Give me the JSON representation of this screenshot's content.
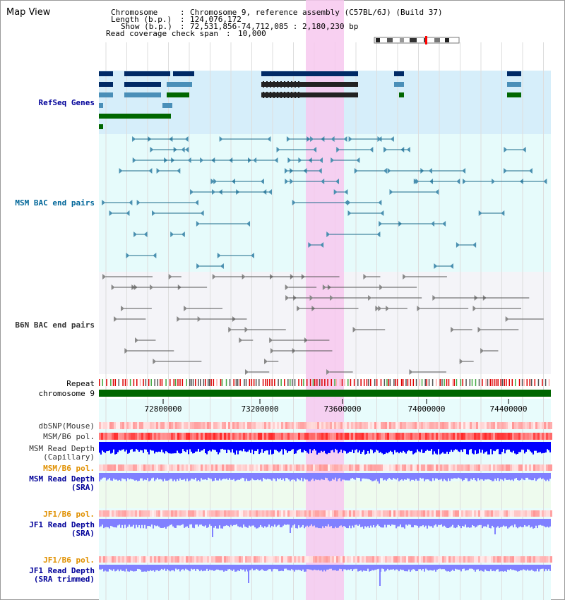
{
  "panel_title": "Map View",
  "header": {
    "chromosome_key": "Chromosome",
    "chromosome_value": "Chromosome 9, reference assembly (C57BL/6J) (Build 37)",
    "length_key": "Length (b.p.)",
    "length_value": "124,076,172",
    "show_key": "Show (b.p.)",
    "show_value": "72,531,856-74,712,085 : 2,180,230 bp",
    "coverage_key": "Read coverage check span",
    "coverage_value": "10,000"
  },
  "tracks": {
    "refseq": "RefSeq Genes",
    "msm_bac": "MSM BAC end pairs",
    "b6n_bac": "B6N BAC end pairs",
    "repeat": "Repeat",
    "chromosome": "chromosome 9",
    "dbsnp": "dbSNP(Mouse)",
    "msm_b6_pol_1": "MSM/B6 pol.",
    "msm_depth_cap_1": "MSM Read Depth",
    "msm_depth_cap_2": "(Capillary)",
    "msm_b6_pol_2": "MSM/B6 pol.",
    "msm_depth_sra_1": "MSM Read Depth",
    "msm_depth_sra_2": "(SRA)",
    "jf1_b6_pol_1": "JF1/B6 pol.",
    "jf1_depth_sra_1": "JF1 Read Depth",
    "jf1_depth_sra_2": "(SRA)",
    "jf1_b6_pol_2": "JF1/B6 pol.",
    "jf1_depth_trim_1": "JF1 Read Depth",
    "jf1_depth_trim_2": "(SRA trimmed)"
  },
  "axis_ticks": [
    "72800000",
    "73200000",
    "73600000",
    "74000000",
    "74400000"
  ],
  "colors": {
    "highlight": "#f7c8ee",
    "refseq_bg": "#d6eefa",
    "msm_bg": "#e6fbfb",
    "b6n_bg": "#f4f4f8",
    "gene_dark": "#002a66",
    "gene_mid": "#4a8fb8",
    "gene_green": "#006600",
    "msm_feature": "#1a6a8a",
    "b6n_feature": "#555555",
    "chromosome_bar": "#006600",
    "depth_capillary": "#0000ff",
    "depth_sra": "#8080ff",
    "pol_red": "#ff4040"
  }
}
